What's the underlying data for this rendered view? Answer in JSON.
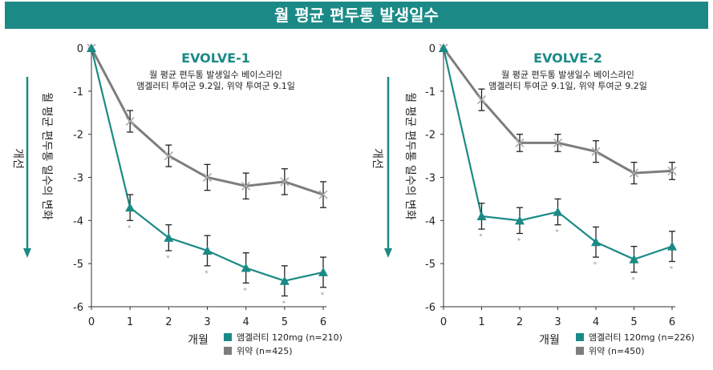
{
  "page_title": "월 평균 편두통 발생일수",
  "colors": {
    "banner": "#1b8a86",
    "drug": "#1b8a86",
    "placebo": "#7d7d7d",
    "arrow": "#1b8a86"
  },
  "chart_data": [
    {
      "type": "line",
      "title": "EVOLVE-1",
      "subtitle": [
        "월 평균 편두통 발생일수 베이스라인",
        "앰겔러티 투여군 9.2일, 위약 투여군 9.1일"
      ],
      "ylabel": "월 평균 편두통 일수의 변화",
      "direction_label": "개선",
      "xlabel": "개월",
      "x": [
        0,
        1,
        2,
        3,
        4,
        5,
        6
      ],
      "xticks": [
        "0",
        "1",
        "2",
        "3",
        "4",
        "5",
        "6"
      ],
      "yticks": [
        "0",
        "-1",
        "-2",
        "-3",
        "-4",
        "-5",
        "-6"
      ],
      "ylim": [
        -6,
        0
      ],
      "series": [
        {
          "name": "앰겔러티 120mg (n=210)",
          "marker": "triangle",
          "values": [
            0,
            -3.7,
            -4.4,
            -4.7,
            -5.1,
            -5.4,
            -5.2
          ],
          "error": [
            0,
            0.3,
            0.3,
            0.35,
            0.35,
            0.35,
            0.35
          ],
          "significance": [
            "",
            "*",
            "*",
            "*",
            "*",
            "*",
            "*"
          ]
        },
        {
          "name": "위약 (n=425)",
          "marker": "x",
          "values": [
            0,
            -1.7,
            -2.5,
            -3.0,
            -3.2,
            -3.1,
            -3.4
          ],
          "error": [
            0,
            0.25,
            0.25,
            0.3,
            0.3,
            0.3,
            0.3
          ]
        }
      ]
    },
    {
      "type": "line",
      "title": "EVOLVE-2",
      "subtitle": [
        "월 평균 편두통 발생일수 베이스라인",
        "앰겔러티 투여군 9.1일, 위약 투여군 9.2일"
      ],
      "ylabel": "월 평균 편두통 일수의 변화",
      "direction_label": "개선",
      "xlabel": "개월",
      "x": [
        0,
        1,
        2,
        3,
        4,
        5,
        6
      ],
      "xticks": [
        "0",
        "1",
        "2",
        "3",
        "4",
        "5",
        "6"
      ],
      "yticks": [
        "0",
        "-1",
        "-2",
        "-3",
        "-4",
        "-5",
        "-6"
      ],
      "ylim": [
        -6,
        0
      ],
      "series": [
        {
          "name": "앰겔러티 120mg (n=226)",
          "marker": "triangle",
          "values": [
            0,
            -3.9,
            -4.0,
            -3.8,
            -4.5,
            -4.9,
            -4.6
          ],
          "error": [
            0,
            0.3,
            0.3,
            0.3,
            0.35,
            0.3,
            0.35
          ],
          "significance": [
            "",
            "*",
            "*",
            "*",
            "*",
            "*",
            "*"
          ]
        },
        {
          "name": "위약 (n=450)",
          "marker": "x",
          "values": [
            0,
            -1.2,
            -2.2,
            -2.2,
            -2.4,
            -2.9,
            -2.85
          ],
          "error": [
            0,
            0.25,
            0.2,
            0.2,
            0.25,
            0.25,
            0.2
          ]
        }
      ]
    }
  ]
}
